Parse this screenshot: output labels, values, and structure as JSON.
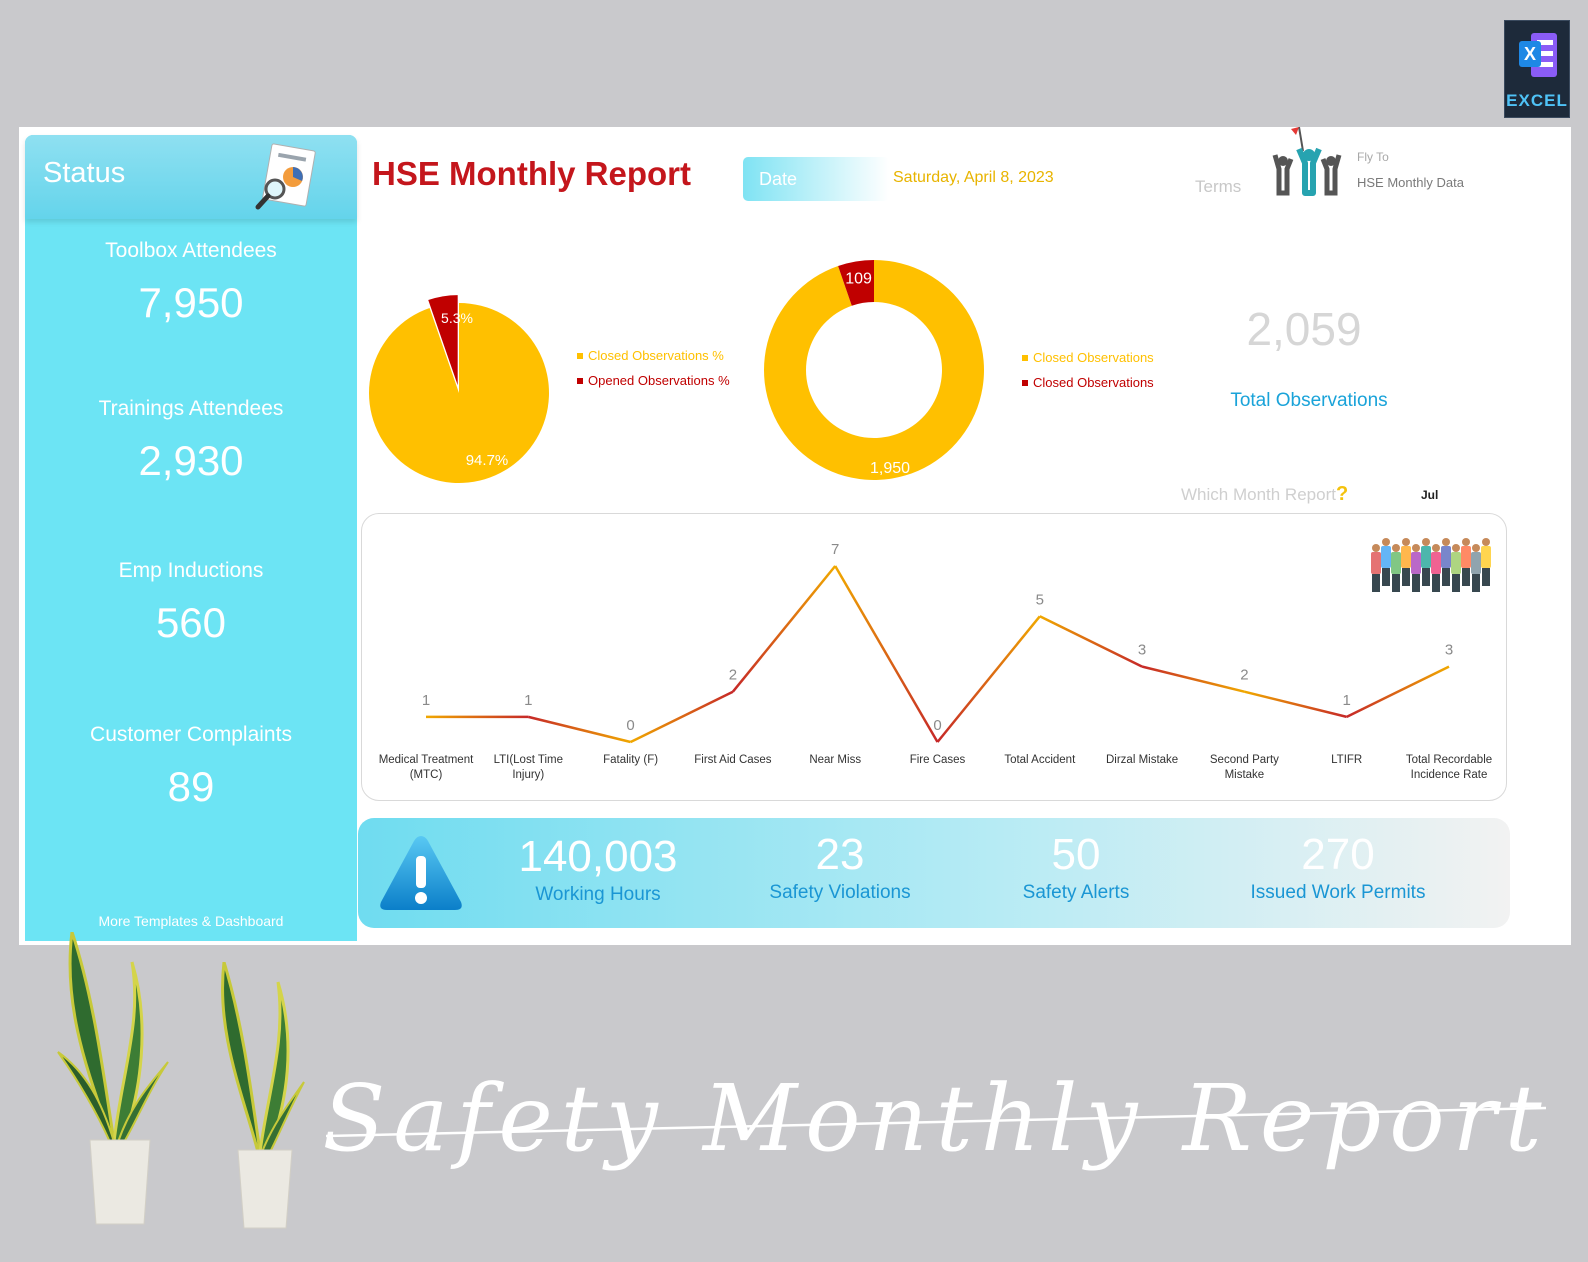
{
  "badge": {
    "label": "EXCEL"
  },
  "sidebar": {
    "title": "Status",
    "stats": [
      {
        "label": "Toolbox Attendees",
        "value": "7,950"
      },
      {
        "label": "Trainings Attendees",
        "value": "2,930"
      },
      {
        "label": "Emp Inductions",
        "value": "560"
      },
      {
        "label": "Customer Complaints",
        "value": "89"
      }
    ],
    "more_link": "More Templates & Dashboard"
  },
  "header": {
    "title": "HSE Monthly Report",
    "date_label": "Date",
    "date_value": "Saturday, April 8, 2023",
    "terms": "Terms",
    "fly_to": "Fly To",
    "hse_data": "HSE Monthly Data"
  },
  "colors": {
    "yellow": "#ffc000",
    "red": "#c00000",
    "cyan": "#6ce4f4",
    "blue_text": "#1aa3d9",
    "title_red": "#c4161c"
  },
  "chart_data": [
    {
      "type": "pie",
      "labels": [
        "Closed Observations %",
        "Opened Observations %"
      ],
      "values": [
        94.7,
        5.3
      ],
      "data_labels": [
        "94.7%",
        "5.3%"
      ],
      "colors": [
        "#ffc000",
        "#c00000"
      ],
      "legend": "right"
    },
    {
      "type": "pie",
      "variant": "donut",
      "labels": [
        "Closed Observations",
        "Closed Observations"
      ],
      "values": [
        1950,
        109
      ],
      "data_labels": [
        "1,950",
        "109"
      ],
      "colors": [
        "#ffc000",
        "#c00000"
      ],
      "legend": "right"
    },
    {
      "type": "line",
      "categories": [
        "Medical Treatment (MTC)",
        "LTI(Lost Time Injury)",
        "Fatality (F)",
        "First Aid Cases",
        "Near Miss",
        "Fire Cases",
        "Total Accident",
        "Dirzal Mistake",
        "Second Party Mistake",
        "LTIFR",
        "Total Recordable Incidence Rate"
      ],
      "category_lines": [
        [
          "Medical Treatment",
          "(MTC)"
        ],
        [
          "LTI(Lost Time",
          "Injury)"
        ],
        [
          "Fatality (F)"
        ],
        [
          "First Aid Cases"
        ],
        [
          "Near Miss"
        ],
        [
          "Fire Cases"
        ],
        [
          "Total Accident"
        ],
        [
          "Dirzal Mistake"
        ],
        [
          "Second Party",
          "Mistake"
        ],
        [
          "LTIFR"
        ],
        [
          "Total Recordable",
          "Incidence Rate"
        ]
      ],
      "values": [
        1,
        1,
        0,
        2,
        7,
        0,
        5,
        3,
        2,
        1,
        3
      ],
      "ylim": [
        0,
        7
      ],
      "grid": false
    }
  ],
  "observations": {
    "total_value": "2,059",
    "total_label": "Total Observations",
    "which_month": "Which Month Report",
    "question_mark": "?",
    "month": "Jul"
  },
  "kpis": [
    {
      "value": "140,003",
      "label": "Working Hours"
    },
    {
      "value": "23",
      "label": "Safety Violations"
    },
    {
      "value": "50",
      "label": "Safety Alerts"
    },
    {
      "value": "270",
      "label": "Issued Work Permits"
    }
  ],
  "footer": {
    "script_title": "Safety Monthly Report"
  }
}
